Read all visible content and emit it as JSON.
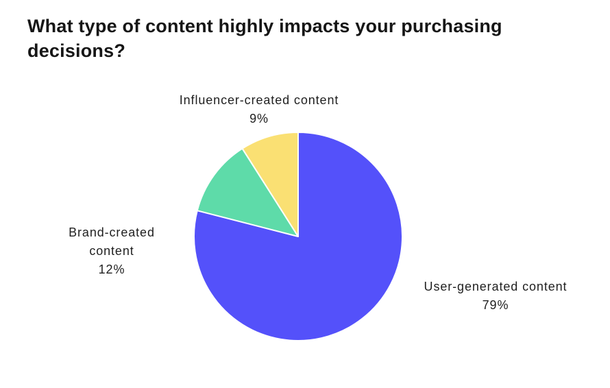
{
  "chart_data": {
    "type": "pie",
    "title": "What type of content highly impacts your purchasing decisions?",
    "slices": [
      {
        "label": "User-generated content",
        "value": 79,
        "percent_label": "79%",
        "color": "#5451FA"
      },
      {
        "label": "Brand-created content",
        "value": 12,
        "percent_label": "12%",
        "color": "#5EDBA9"
      },
      {
        "label": "Influencer-created content",
        "value": 9,
        "percent_label": "9%",
        "color": "#FAE073"
      }
    ],
    "total": 100,
    "start_angle_deg": 0,
    "direction": "clockwise",
    "slice_border_color": "#ffffff",
    "slice_border_width": 2,
    "labels_position": "outside",
    "legend_position": "none",
    "background_color": "#ffffff",
    "title_color": "#161616",
    "label_color": "#1f1f1f"
  }
}
